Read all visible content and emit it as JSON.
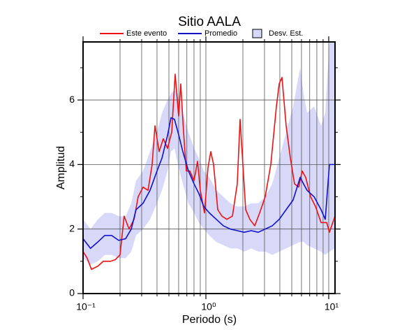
{
  "chart_data": {
    "type": "line",
    "title": "Sitio AALA",
    "xlabel": "Periodo (s)",
    "ylabel": "Amplitud",
    "xscale": "log",
    "xlim": [
      0.1,
      11.25
    ],
    "xticks": [
      {
        "value": 0.1,
        "label": "10⁻¹"
      },
      {
        "value": 1,
        "label": "10⁰"
      },
      {
        "value": 10,
        "label": "10¹"
      }
    ],
    "xminorticks": [
      0.2,
      0.3,
      0.4,
      0.5,
      0.6,
      0.7,
      0.8,
      0.9,
      2,
      3,
      4,
      5,
      6,
      7,
      8,
      9
    ],
    "ylim": [
      0,
      7.8
    ],
    "yticks": [
      0,
      2,
      4,
      6
    ],
    "yminorticks": [
      1,
      3,
      5,
      7
    ],
    "grid": true,
    "series": [
      {
        "name": "Este evento",
        "color": "#ee1111",
        "x": [
          0.1,
          0.108,
          0.117,
          0.132,
          0.146,
          0.167,
          0.183,
          0.2,
          0.216,
          0.237,
          0.26,
          0.281,
          0.308,
          0.338,
          0.365,
          0.385,
          0.416,
          0.45,
          0.487,
          0.527,
          0.562,
          0.6,
          0.624,
          0.658,
          0.693,
          0.74,
          0.801,
          0.855,
          0.9,
          0.974,
          1.04,
          1.096,
          1.155,
          1.249,
          1.351,
          1.481,
          1.644,
          1.8,
          1.898,
          2.0,
          2.108,
          2.28,
          2.498,
          2.738,
          3.04,
          3.376,
          3.749,
          3.95,
          4.163,
          4.5,
          4.87,
          5.268,
          5.697,
          6.08,
          6.494,
          7.118,
          7.8,
          8.66,
          9.62,
          10.13,
          11.25
        ],
        "values": [
          1.3,
          1.1,
          0.75,
          0.85,
          1.0,
          1.0,
          1.05,
          1.2,
          2.4,
          2.0,
          2.3,
          3.0,
          3.3,
          3.2,
          4.0,
          5.2,
          4.4,
          4.8,
          4.5,
          5.0,
          6.8,
          5.5,
          6.5,
          5.0,
          3.8,
          3.8,
          3.5,
          4.1,
          3.2,
          2.5,
          3.9,
          4.4,
          4.0,
          2.6,
          2.4,
          2.3,
          2.4,
          3.4,
          5.4,
          4.0,
          2.6,
          2.3,
          2.1,
          2.5,
          3.0,
          4.0,
          5.8,
          6.5,
          6.7,
          5.2,
          4.2,
          3.4,
          3.3,
          3.8,
          3.6,
          3.0,
          2.7,
          2.2,
          2.2,
          1.9,
          2.4
        ]
      },
      {
        "name": "Promedio",
        "color": "#1111cc",
        "x": [
          0.1,
          0.115,
          0.132,
          0.15,
          0.171,
          0.195,
          0.222,
          0.247,
          0.27,
          0.308,
          0.351,
          0.4,
          0.439,
          0.487,
          0.52,
          0.555,
          0.593,
          0.649,
          0.721,
          0.801,
          0.877,
          0.961,
          1.067,
          1.216,
          1.387,
          1.581,
          1.8,
          2.05,
          2.34,
          2.67,
          3.04,
          3.47,
          3.95,
          4.5,
          5.13,
          5.85,
          6.24,
          6.66,
          7.6,
          8.66,
          9.37,
          10.13,
          11.25
        ],
        "values": [
          1.7,
          1.4,
          1.6,
          1.8,
          1.8,
          1.65,
          1.7,
          2.0,
          2.6,
          2.8,
          3.2,
          3.8,
          4.2,
          4.9,
          5.45,
          5.4,
          5.0,
          4.4,
          3.8,
          3.4,
          3.1,
          2.7,
          2.5,
          2.3,
          2.1,
          2.0,
          1.95,
          1.9,
          1.95,
          1.9,
          2.0,
          2.1,
          2.3,
          2.6,
          2.9,
          3.6,
          3.4,
          3.2,
          3.0,
          2.6,
          2.3,
          4.0,
          4.0
        ]
      }
    ],
    "band": {
      "name": "Desv. Est.",
      "color": "#d8d8f8",
      "x": [
        0.1,
        0.115,
        0.132,
        0.15,
        0.171,
        0.195,
        0.222,
        0.247,
        0.27,
        0.308,
        0.351,
        0.4,
        0.439,
        0.487,
        0.52,
        0.555,
        0.593,
        0.649,
        0.721,
        0.801,
        0.877,
        0.961,
        1.067,
        1.216,
        1.387,
        1.581,
        1.8,
        2.05,
        2.34,
        2.67,
        3.04,
        3.47,
        3.95,
        4.5,
        5.13,
        5.85,
        6.24,
        6.66,
        7.6,
        8.66,
        9.37,
        10.13,
        11.25
      ],
      "upper": [
        2.3,
        2.0,
        2.3,
        2.5,
        2.5,
        2.4,
        2.4,
        2.8,
        3.5,
        3.8,
        4.4,
        5.0,
        5.6,
        6.0,
        6.2,
        6.3,
        6.2,
        5.6,
        5.0,
        4.5,
        4.2,
        3.8,
        3.6,
        3.2,
        3.0,
        2.8,
        2.7,
        2.7,
        2.8,
        2.8,
        3.0,
        3.4,
        4.2,
        5.0,
        5.8,
        7.0,
        6.2,
        5.6,
        5.8,
        5.2,
        5.6,
        7.8,
        7.8
      ],
      "lower": [
        1.1,
        0.9,
        1.0,
        1.2,
        1.2,
        1.1,
        1.1,
        1.3,
        1.8,
        2.0,
        2.3,
        2.8,
        3.2,
        3.8,
        4.4,
        4.5,
        4.0,
        3.4,
        2.8,
        2.5,
        2.2,
        2.0,
        1.8,
        1.6,
        1.5,
        1.4,
        1.4,
        1.3,
        1.4,
        1.3,
        1.3,
        1.2,
        1.3,
        1.4,
        1.5,
        1.6,
        1.6,
        1.5,
        1.4,
        1.3,
        1.2,
        1.3,
        1.4
      ]
    }
  }
}
